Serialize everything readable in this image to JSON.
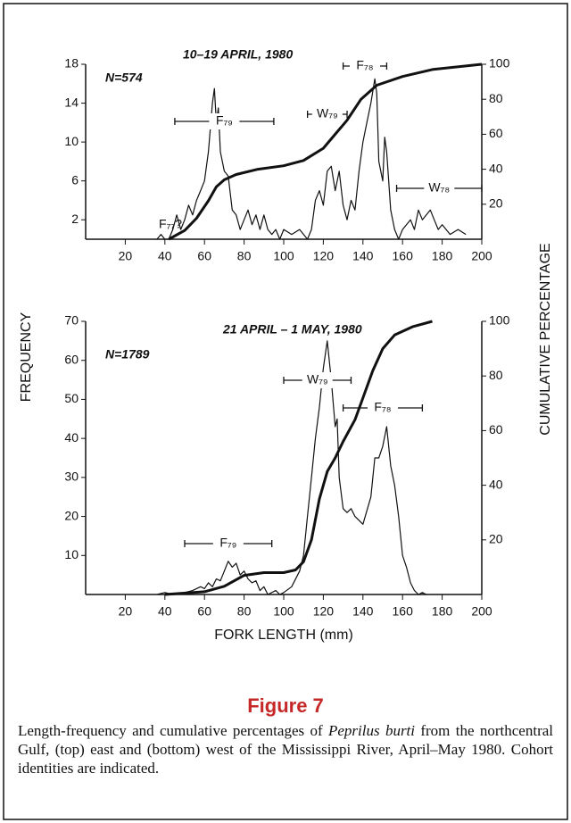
{
  "chart_data": [
    {
      "type": "line",
      "title": "10–19 APRIL, 1980",
      "note": "N=574",
      "xlim": [
        0,
        200
      ],
      "xticks": [
        20,
        40,
        60,
        80,
        100,
        120,
        140,
        160,
        180,
        200
      ],
      "ylim": [
        0,
        18
      ],
      "yticks": [
        2,
        6,
        10,
        14,
        18
      ],
      "y2lim": [
        0,
        100
      ],
      "y2ticks": [
        20,
        40,
        60,
        80,
        100
      ],
      "series": [
        {
          "color": "#111111",
          "x": [
            36,
            38,
            40,
            42,
            44,
            46,
            48,
            50,
            52,
            54,
            56,
            58,
            60,
            62,
            64,
            65,
            66,
            67,
            68,
            70,
            72,
            74,
            76,
            78,
            80,
            82,
            84,
            86,
            88,
            90,
            92,
            94,
            96,
            98,
            100,
            104,
            108,
            112,
            114,
            116,
            118,
            120,
            122,
            124,
            126,
            128,
            130,
            132,
            134,
            136,
            138,
            140,
            142,
            144,
            146,
            147,
            148,
            150,
            151,
            152,
            154,
            156,
            158,
            160,
            164,
            166,
            168,
            170,
            174,
            176,
            178,
            180,
            184,
            188,
            192
          ],
          "values": [
            0,
            0.5,
            0,
            0,
            1,
            2.5,
            1,
            2,
            3.5,
            2.5,
            4,
            5,
            6,
            9,
            14,
            15.5,
            12,
            13.5,
            9,
            7,
            6.5,
            3,
            2.5,
            1,
            2,
            3,
            1.5,
            2.5,
            1,
            2.5,
            1,
            0.5,
            1,
            0,
            1,
            0.5,
            1,
            0,
            1,
            4,
            5,
            3.5,
            7,
            7.5,
            5,
            7,
            3.5,
            2,
            4,
            3,
            7,
            10,
            12,
            14,
            16.5,
            15,
            8,
            6,
            10.5,
            9,
            3,
            1,
            0,
            1,
            2,
            1,
            3,
            2,
            3,
            2,
            1,
            1.5,
            0.5,
            1,
            0.5
          ]
        },
        {
          "color": "#111111",
          "axis": "y2",
          "x": [
            42,
            50,
            56,
            62,
            66,
            70,
            76,
            87,
            100,
            110,
            120,
            126,
            132,
            139,
            147,
            160,
            175,
            200
          ],
          "values": [
            0,
            5,
            12,
            22,
            30,
            34,
            37,
            40,
            42,
            45,
            52,
            60,
            68,
            80,
            88,
            93,
            97,
            100
          ]
        }
      ],
      "annotations": [
        {
          "text": "F₇₉",
          "range": [
            45,
            95
          ]
        },
        {
          "text": "W₇₉",
          "range": [
            112,
            132
          ]
        },
        {
          "text": "F₇₈",
          "range": [
            130,
            152
          ]
        },
        {
          "text": "W₇₈",
          "range": [
            157,
            200
          ]
        },
        {
          "text": "F₇₇?"
        }
      ]
    },
    {
      "type": "line",
      "title": "21 APRIL – 1 MAY, 1980",
      "note": "N=1789",
      "xlim": [
        0,
        200
      ],
      "xticks": [
        20,
        40,
        60,
        80,
        100,
        120,
        140,
        160,
        180,
        200
      ],
      "ylim": [
        0,
        70
      ],
      "yticks": [
        10,
        20,
        30,
        40,
        50,
        60,
        70
      ],
      "y2lim": [
        0,
        100
      ],
      "y2ticks": [
        20,
        40,
        60,
        80,
        100
      ],
      "series": [
        {
          "color": "#111111",
          "x": [
            36,
            40,
            44,
            50,
            54,
            58,
            60,
            62,
            64,
            66,
            68,
            70,
            72,
            74,
            76,
            78,
            80,
            82,
            84,
            86,
            88,
            90,
            92,
            96,
            98,
            100,
            104,
            108,
            110,
            112,
            114,
            116,
            118,
            120,
            122,
            124,
            126,
            127,
            128,
            130,
            132,
            134,
            136,
            140,
            144,
            146,
            148,
            150,
            152,
            154,
            156,
            158,
            160,
            162,
            164,
            166,
            168,
            170,
            172
          ],
          "values": [
            0,
            0.5,
            0,
            0.5,
            1,
            2,
            1.5,
            3,
            2,
            4,
            3.5,
            6,
            8.5,
            7,
            8,
            5,
            6,
            4,
            3,
            3.5,
            1,
            2,
            0,
            1,
            0,
            0.5,
            2,
            6,
            10,
            20,
            30,
            40,
            48,
            58,
            65,
            55,
            43,
            45,
            30,
            22,
            21,
            22,
            20,
            18,
            25,
            35,
            35,
            38,
            43,
            33,
            28,
            20,
            10,
            7,
            3,
            1,
            0,
            0.5,
            0
          ]
        },
        {
          "color": "#111111",
          "axis": "y2",
          "x": [
            40,
            60,
            70,
            80,
            90,
            100,
            106,
            110,
            114,
            118,
            122,
            126,
            130,
            136,
            140,
            145,
            150,
            156,
            165,
            175
          ],
          "values": [
            0,
            1,
            3,
            7,
            8,
            8,
            9,
            12,
            20,
            35,
            45,
            50,
            56,
            64,
            72,
            82,
            90,
            95,
            98,
            100
          ]
        }
      ],
      "annotations": [
        {
          "text": "W₇₉",
          "range": [
            100,
            134
          ]
        },
        {
          "text": "F₇₈",
          "range": [
            130,
            170
          ]
        },
        {
          "text": "F₇₉",
          "range": [
            50,
            94
          ]
        }
      ]
    }
  ],
  "shared_labels": {
    "ylabel": "FREQUENCY",
    "y2label": "CUMULATIVE PERCENTAGE",
    "xlabel": "FORK LENGTH (mm)"
  },
  "caption": {
    "label": "Figure 7",
    "text": [
      "Length-frequency and cumulative percentages of ",
      "Peprilus burti",
      " from the northcentral Gulf, (top) east and (bottom) west of the Mississippi River, April–May 1980. Cohort identities are indicated."
    ]
  }
}
